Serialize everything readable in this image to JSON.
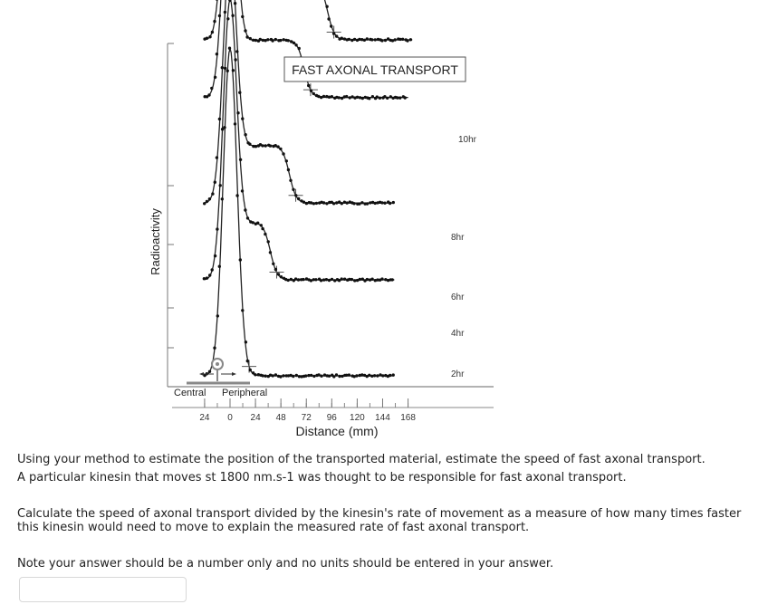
{
  "chart_data": {
    "type": "line",
    "title": "FAST AXONAL TRANSPORT",
    "xlabel": "Distance (mm)",
    "ylabel": "Radioactivity",
    "x_ticks": [
      "24",
      "0",
      "24",
      "48",
      "72",
      "96",
      "120",
      "144",
      "168"
    ],
    "x_tick_values": [
      -24,
      0,
      24,
      48,
      72,
      96,
      120,
      144,
      168
    ],
    "xlim": [
      -30,
      172
    ],
    "region_labels": {
      "left": "Central",
      "right": "Peripheral"
    },
    "series": [
      {
        "name": "2hr",
        "peak_x": 0,
        "baseline": 0,
        "peak": 68,
        "front_x": 12,
        "front_level": 4,
        "tail_end": 155
      },
      {
        "name": "4hr",
        "peak_x": 0,
        "baseline": 20,
        "peak": 58,
        "front_x": 38,
        "front_level": 12,
        "tail_end": 155
      },
      {
        "name": "6hr",
        "peak_x": 0,
        "baseline": 36,
        "peak": 52,
        "front_x": 56,
        "front_level": 12,
        "tail_end": 155
      },
      {
        "name": "8hr",
        "peak_x": 0,
        "baseline": 58,
        "peak": 50,
        "front_x": 70,
        "front_level": 12,
        "tail_end": 168
      },
      {
        "name": "10hr",
        "peak_x": 0,
        "baseline": 70,
        "peak": 46,
        "front_x": 92,
        "front_level": 12,
        "tail_end": 172
      }
    ]
  },
  "question": {
    "line1": "Using your method to estimate the position of the transported material, estimate the speed of fast axonal transport.",
    "line2": "A particular kinesin that moves st 1800 nm.s-1 was thought to be responsible for fast axonal transport.",
    "line3": "Calculate the speed of axonal transport  divided by the kinesin's rate of movement as a measure of how many times faster this kinesin would need to move to explain the measured rate of fast axonal transport.",
    "line4": "Note your answer should be a number only and no units should be entered in your answer."
  },
  "answer_input": {
    "value": "",
    "placeholder": ""
  }
}
